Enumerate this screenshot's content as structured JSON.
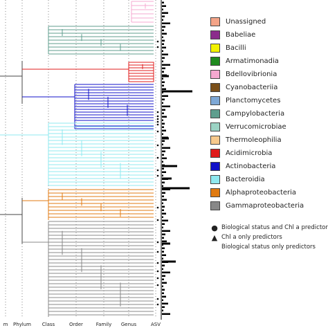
{
  "legend": [
    {
      "label": "Unassigned",
      "color": "#f4a488"
    },
    {
      "label": "Babeliae",
      "color": "#8b2c8c"
    },
    {
      "label": "Bacilli",
      "color": "#f2f200"
    },
    {
      "label": "Armatimonadia",
      "color": "#1f8a1f"
    },
    {
      "label": "Bdellovibrionia",
      "color": "#f6a8d0"
    },
    {
      "label": "Cyanobacteriia",
      "color": "#7a4f1a"
    },
    {
      "label": "Planctomycetes",
      "color": "#7ea8d6"
    },
    {
      "label": "Campylobacteria",
      "color": "#5f9e8e"
    },
    {
      "label": "Verrucomicrobiae",
      "color": "#9bd3c4"
    },
    {
      "label": "Thermoleophilia",
      "color": "#f7c98c"
    },
    {
      "label": "Acidimicrobia",
      "color": "#e01b1b"
    },
    {
      "label": "Actinobacteria",
      "color": "#1010c8"
    },
    {
      "label": "Bacteroidia",
      "color": "#8fe8ef"
    },
    {
      "label": "Alphaproteobacteria",
      "color": "#e07a10"
    },
    {
      "label": "Gammaproteobacteria",
      "color": "#888888"
    }
  ],
  "predictor_key": [
    {
      "symbol": "●",
      "label": "Biological status and Chl a predictors"
    },
    {
      "symbol": "▲",
      "label": "Chl a only predictors"
    },
    {
      "symbol": "",
      "label": "Biological status only predictors"
    }
  ],
  "axis_labels": [
    "m",
    "Phylum",
    "Class",
    "Order",
    "Family",
    "Genus",
    "ASV"
  ]
}
